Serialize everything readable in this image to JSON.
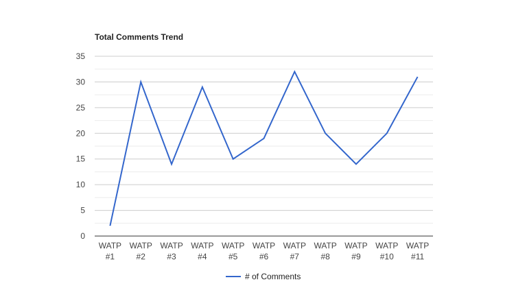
{
  "chart_data": {
    "type": "line",
    "title": "Total Comments Trend",
    "categories": [
      "WATP #1",
      "WATP #2",
      "WATP #3",
      "WATP #4",
      "WATP #5",
      "WATP #6",
      "WATP #7",
      "WATP #8",
      "WATP #9",
      "WATP #10",
      "WATP #11"
    ],
    "series": [
      {
        "name": "# of Comments",
        "values": [
          2,
          30,
          14,
          29,
          15,
          19,
          32,
          20,
          14,
          20,
          31
        ],
        "color": "#3366cc"
      }
    ],
    "ylim": [
      0,
      35
    ],
    "yticks": [
      0,
      5,
      10,
      15,
      20,
      25,
      30,
      35
    ],
    "xlabel": "",
    "ylabel": "",
    "grid": true,
    "legend": "bottom"
  }
}
